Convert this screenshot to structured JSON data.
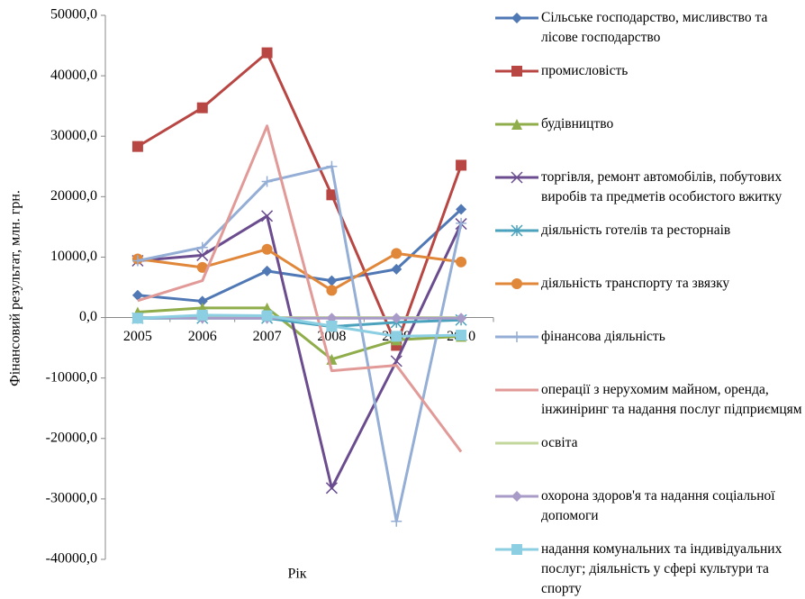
{
  "chart_data": {
    "type": "line",
    "x_label": "Рік",
    "y_label": "Фінансовий результат, млн. грн.",
    "categories": [
      "2005",
      "2006",
      "2007",
      "2008",
      "2009",
      "2010"
    ],
    "ylim": [
      -40000,
      50000
    ],
    "yticks": [
      {
        "value": -40000,
        "label": "-40000,0"
      },
      {
        "value": -30000,
        "label": "-30000,0"
      },
      {
        "value": -20000,
        "label": "-20000,0"
      },
      {
        "value": -10000,
        "label": "-10000,0"
      },
      {
        "value": 0,
        "label": "0,0"
      },
      {
        "value": 10000,
        "label": "10000,0"
      },
      {
        "value": 20000,
        "label": "20000,0"
      },
      {
        "value": 30000,
        "label": "30000,0"
      },
      {
        "value": 40000,
        "label": "40000,0"
      },
      {
        "value": 50000,
        "label": "50000,0"
      }
    ],
    "legend": "right",
    "series": [
      {
        "name": "Сільське господарство, мисливство та лісове господарство",
        "color": "#4f78b5",
        "marker": "diamond",
        "values": [
          3700,
          2700,
          7700,
          6100,
          8000,
          17900
        ]
      },
      {
        "name": "промисловість",
        "color": "#b84643",
        "marker": "square",
        "values": [
          28300,
          34700,
          43800,
          20300,
          -4600,
          25200
        ]
      },
      {
        "name": "будівництво",
        "color": "#8fad4a",
        "marker": "triangle",
        "values": [
          900,
          1600,
          1600,
          -6900,
          -3700,
          -3100
        ]
      },
      {
        "name": "торгівля, ремонт автомобілів, побутових виробів та предметів особистого вжитку",
        "color": "#6b4d8f",
        "marker": "x",
        "values": [
          9400,
          10300,
          16800,
          -28200,
          -7200,
          15500
        ]
      },
      {
        "name": "діяльність готелів та ресторнаів",
        "color": "#4aa2bd",
        "marker": "asterisk",
        "values": [
          -100,
          -100,
          -100,
          -1500,
          -800,
          -400
        ]
      },
      {
        "name": "діяльність транспорту та звязку",
        "color": "#e0873a",
        "marker": "circle",
        "values": [
          9700,
          8300,
          11300,
          4500,
          10600,
          9200
        ]
      },
      {
        "name": "фінансова діяльність",
        "color": "#94aed6",
        "marker": "plus",
        "values": [
          9400,
          11600,
          22500,
          25000,
          -33700,
          15600
        ]
      },
      {
        "name": "операції з нерухомим майном, оренда, інжиніринг та надання послуг підприємцям",
        "color": "#e19a97",
        "marker": "none",
        "values": [
          2800,
          6100,
          31700,
          -8800,
          -7900,
          -22200
        ]
      },
      {
        "name": "освіта",
        "color": "#c3d69b",
        "marker": "none",
        "values": [
          0,
          0,
          0,
          0,
          0,
          0
        ]
      },
      {
        "name": "охорона здоров'я та надання соціальної допомоги",
        "color": "#a99bc7",
        "marker": "diamond",
        "values": [
          0,
          -100,
          -100,
          -100,
          -100,
          -100
        ]
      },
      {
        "name": "надання комунальних та індивідуальних послуг; діяльність у сфері культури та спорту",
        "color": "#8ccfe2",
        "marker": "square",
        "values": [
          -100,
          400,
          300,
          -1400,
          -3100,
          -2900
        ]
      }
    ]
  }
}
